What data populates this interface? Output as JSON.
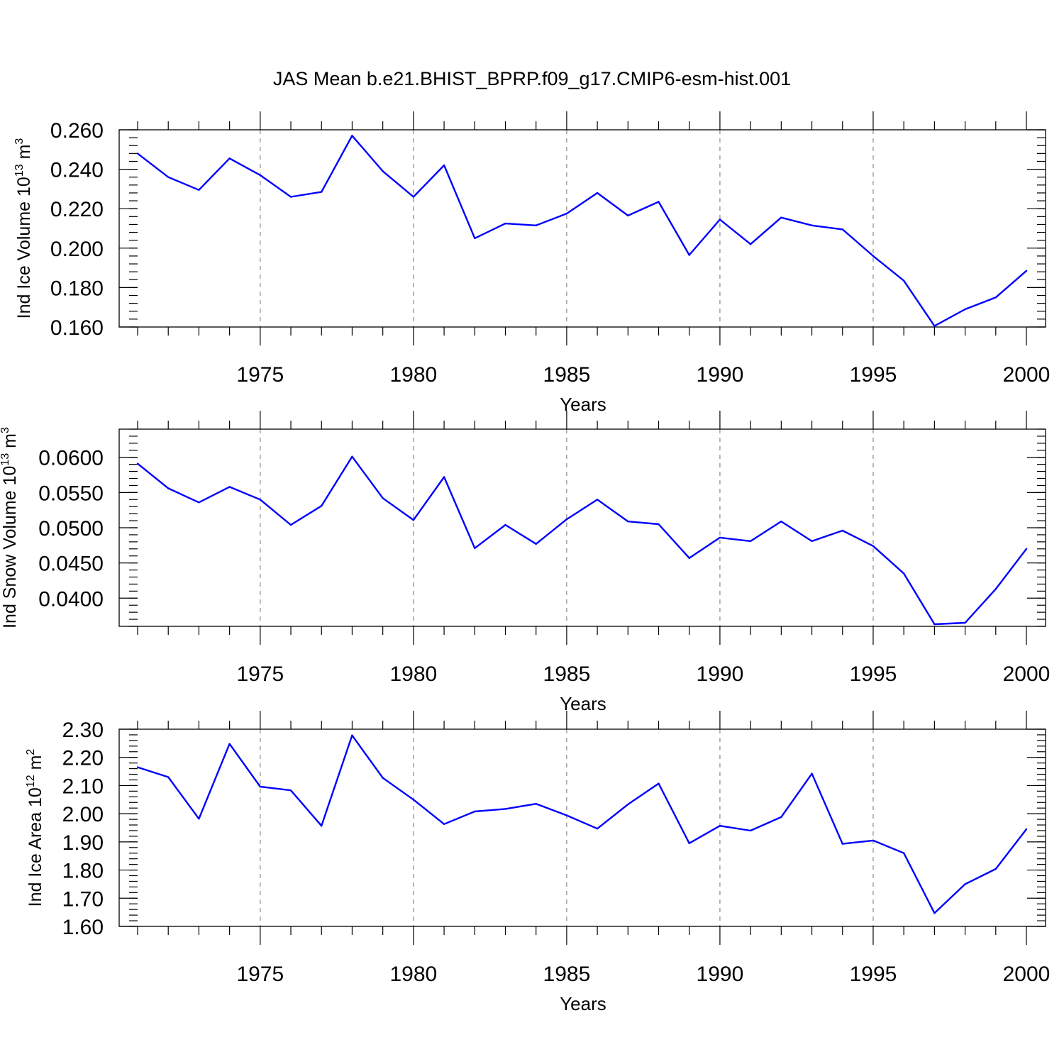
{
  "title": "JAS Mean b.e21.BHIST_BPRP.f09_g17.CMIP6-esm-hist.001",
  "colors": {
    "series": "#0000ff",
    "grid": "#888888",
    "axis": "#000000"
  },
  "chart_data": [
    {
      "type": "line",
      "xlabel": "Years",
      "ylabel": {
        "text": "Ind Ice Volume 10",
        "exp": "13",
        "unit": " m",
        "unit_exp": "3"
      },
      "xlim": [
        1971,
        2000
      ],
      "ylim": [
        0.16,
        0.26
      ],
      "x_ticks": [
        1975,
        1980,
        1985,
        1990,
        1995,
        2000
      ],
      "y_ticks": [
        0.16,
        0.18,
        0.2,
        0.22,
        0.24,
        0.26
      ],
      "y_tick_labels": [
        "0.160",
        "0.180",
        "0.200",
        "0.220",
        "0.240",
        "0.260"
      ],
      "y_minor_step": 0.004,
      "grid": "vertical dashed at major x ticks",
      "x": [
        1971,
        1972,
        1973,
        1974,
        1975,
        1976,
        1977,
        1978,
        1979,
        1980,
        1981,
        1982,
        1983,
        1984,
        1985,
        1986,
        1987,
        1988,
        1989,
        1990,
        1991,
        1992,
        1993,
        1994,
        1995,
        1996,
        1997,
        1998,
        1999,
        2000
      ],
      "values": [
        0.248,
        0.236,
        0.2295,
        0.2455,
        0.237,
        0.226,
        0.2285,
        0.257,
        0.239,
        0.226,
        0.242,
        0.205,
        0.2125,
        0.2115,
        0.2175,
        0.228,
        0.2165,
        0.2235,
        0.1965,
        0.2145,
        0.202,
        0.2155,
        0.2115,
        0.2095,
        0.196,
        0.1835,
        0.1605,
        0.169,
        0.175,
        0.1885
      ]
    },
    {
      "type": "line",
      "xlabel": "Years",
      "ylabel": {
        "text": "Ind Snow Volume 10",
        "exp": "13",
        "unit": " m",
        "unit_exp": "3"
      },
      "xlim": [
        1971,
        2000
      ],
      "ylim": [
        0.036,
        0.064
      ],
      "x_ticks": [
        1975,
        1980,
        1985,
        1990,
        1995,
        2000
      ],
      "y_ticks": [
        0.04,
        0.045,
        0.05,
        0.055,
        0.06
      ],
      "y_tick_labels": [
        "0.0400",
        "0.0450",
        "0.0500",
        "0.0550",
        "0.0600"
      ],
      "y_minor_step": 0.001,
      "grid": "vertical dashed at major x ticks",
      "x": [
        1971,
        1972,
        1973,
        1974,
        1975,
        1976,
        1977,
        1978,
        1979,
        1980,
        1981,
        1982,
        1983,
        1984,
        1985,
        1986,
        1987,
        1988,
        1989,
        1990,
        1991,
        1992,
        1993,
        1994,
        1995,
        1996,
        1997,
        1998,
        1999,
        2000
      ],
      "values": [
        0.0591,
        0.0556,
        0.0536,
        0.0558,
        0.054,
        0.0504,
        0.0531,
        0.0601,
        0.0542,
        0.0511,
        0.0572,
        0.0471,
        0.0504,
        0.0477,
        0.0512,
        0.054,
        0.0509,
        0.0505,
        0.0457,
        0.0486,
        0.0481,
        0.0509,
        0.0481,
        0.0496,
        0.0474,
        0.0435,
        0.0363,
        0.0365,
        0.0413,
        0.047
      ]
    },
    {
      "type": "line",
      "xlabel": "Years",
      "ylabel": {
        "text": "Ind Ice Area 10",
        "exp": "12",
        "unit": " m",
        "unit_exp": "2"
      },
      "xlim": [
        1971,
        2000
      ],
      "ylim": [
        1.6,
        2.3
      ],
      "x_ticks": [
        1975,
        1980,
        1985,
        1990,
        1995,
        2000
      ],
      "y_ticks": [
        1.6,
        1.7,
        1.8,
        1.9,
        2.0,
        2.1,
        2.2,
        2.3
      ],
      "y_tick_labels": [
        "1.60",
        "1.70",
        "1.80",
        "1.90",
        "2.00",
        "2.10",
        "2.20",
        "2.30"
      ],
      "y_minor_step": 0.02,
      "grid": "vertical dashed at major x ticks",
      "x": [
        1971,
        1972,
        1973,
        1974,
        1975,
        1976,
        1977,
        1978,
        1979,
        1980,
        1981,
        1982,
        1983,
        1984,
        1985,
        1986,
        1987,
        1988,
        1989,
        1990,
        1991,
        1992,
        1993,
        1994,
        1995,
        1996,
        1997,
        1998,
        1999,
        2000
      ],
      "values": [
        2.165,
        2.13,
        1.982,
        2.248,
        2.096,
        2.083,
        1.957,
        2.278,
        2.127,
        2.05,
        1.963,
        2.008,
        2.017,
        2.035,
        1.994,
        1.947,
        2.033,
        2.107,
        1.895,
        1.957,
        1.94,
        1.988,
        2.142,
        1.893,
        1.905,
        1.86,
        1.647,
        1.75,
        1.804,
        1.945
      ]
    }
  ]
}
